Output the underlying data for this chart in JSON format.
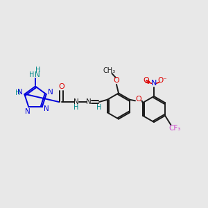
{
  "bg_color": "#e8e8e8",
  "bond_color": "#1a1a1a",
  "tetrazole_color": "#0000dd",
  "oxygen_color": "#dd0000",
  "nitro_n_color": "#0000dd",
  "fluorine_color": "#cc44cc",
  "h_color": "#008888",
  "figsize": [
    3.0,
    3.0
  ],
  "dpi": 100,
  "xlim": [
    0,
    10
  ],
  "ylim": [
    0,
    10
  ]
}
